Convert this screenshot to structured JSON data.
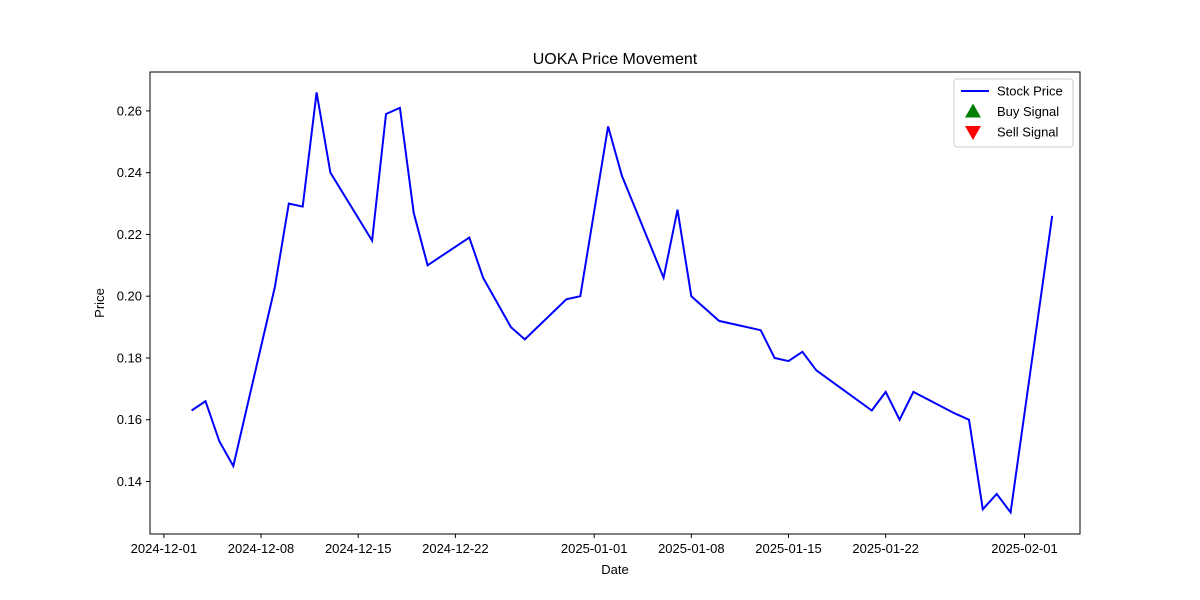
{
  "chart_data": {
    "type": "line",
    "title": "UOKA Price Movement",
    "xlabel": "Date",
    "ylabel": "Price",
    "xlim": [
      "2024-11-30",
      "2025-02-05"
    ],
    "ylim": [
      0.123,
      0.2726
    ],
    "grid": false,
    "legend_position": "top-right",
    "x_ticks": [
      "2024-12-01",
      "2024-12-08",
      "2024-12-15",
      "2024-12-22",
      "2025-01-01",
      "2025-01-08",
      "2025-01-15",
      "2025-01-22",
      "2025-02-01"
    ],
    "y_ticks": [
      0.14,
      0.16,
      0.18,
      0.2,
      0.22,
      0.24,
      0.26
    ],
    "y_tick_labels": [
      "0.14",
      "0.16",
      "0.18",
      "0.20",
      "0.22",
      "0.24",
      "0.26"
    ],
    "series": [
      {
        "name": "Stock Price",
        "color": "#0000ff",
        "x": [
          "2024-12-03",
          "2024-12-04",
          "2024-12-05",
          "2024-12-06",
          "2024-12-09",
          "2024-12-10",
          "2024-12-11",
          "2024-12-12",
          "2024-12-13",
          "2024-12-16",
          "2024-12-17",
          "2024-12-18",
          "2024-12-19",
          "2024-12-20",
          "2024-12-23",
          "2024-12-24",
          "2024-12-26",
          "2024-12-27",
          "2024-12-30",
          "2024-12-31",
          "2025-01-02",
          "2025-01-03",
          "2025-01-06",
          "2025-01-07",
          "2025-01-08",
          "2025-01-10",
          "2025-01-13",
          "2025-01-14",
          "2025-01-15",
          "2025-01-16",
          "2025-01-17",
          "2025-01-21",
          "2025-01-22",
          "2025-01-23",
          "2025-01-24",
          "2025-01-27",
          "2025-01-28",
          "2025-01-29",
          "2025-01-30",
          "2025-01-31",
          "2025-02-03"
        ],
        "y": [
          0.163,
          0.166,
          0.153,
          0.145,
          0.203,
          0.23,
          0.229,
          0.266,
          0.24,
          0.218,
          0.259,
          0.261,
          0.227,
          0.21,
          0.219,
          0.206,
          0.19,
          0.186,
          0.199,
          0.2,
          0.255,
          0.239,
          0.206,
          0.228,
          0.2,
          0.192,
          0.189,
          0.18,
          0.179,
          0.182,
          0.176,
          0.163,
          0.169,
          0.16,
          0.169,
          0.162,
          0.16,
          0.131,
          0.136,
          0.13,
          0.226
        ]
      }
    ],
    "legend": [
      {
        "label": "Stock Price",
        "marker": "line",
        "color": "#0000ff"
      },
      {
        "label": "Buy Signal",
        "marker": "triangle-up",
        "color": "#008000"
      },
      {
        "label": "Sell Signal",
        "marker": "triangle-down",
        "color": "#ff0000"
      }
    ]
  }
}
